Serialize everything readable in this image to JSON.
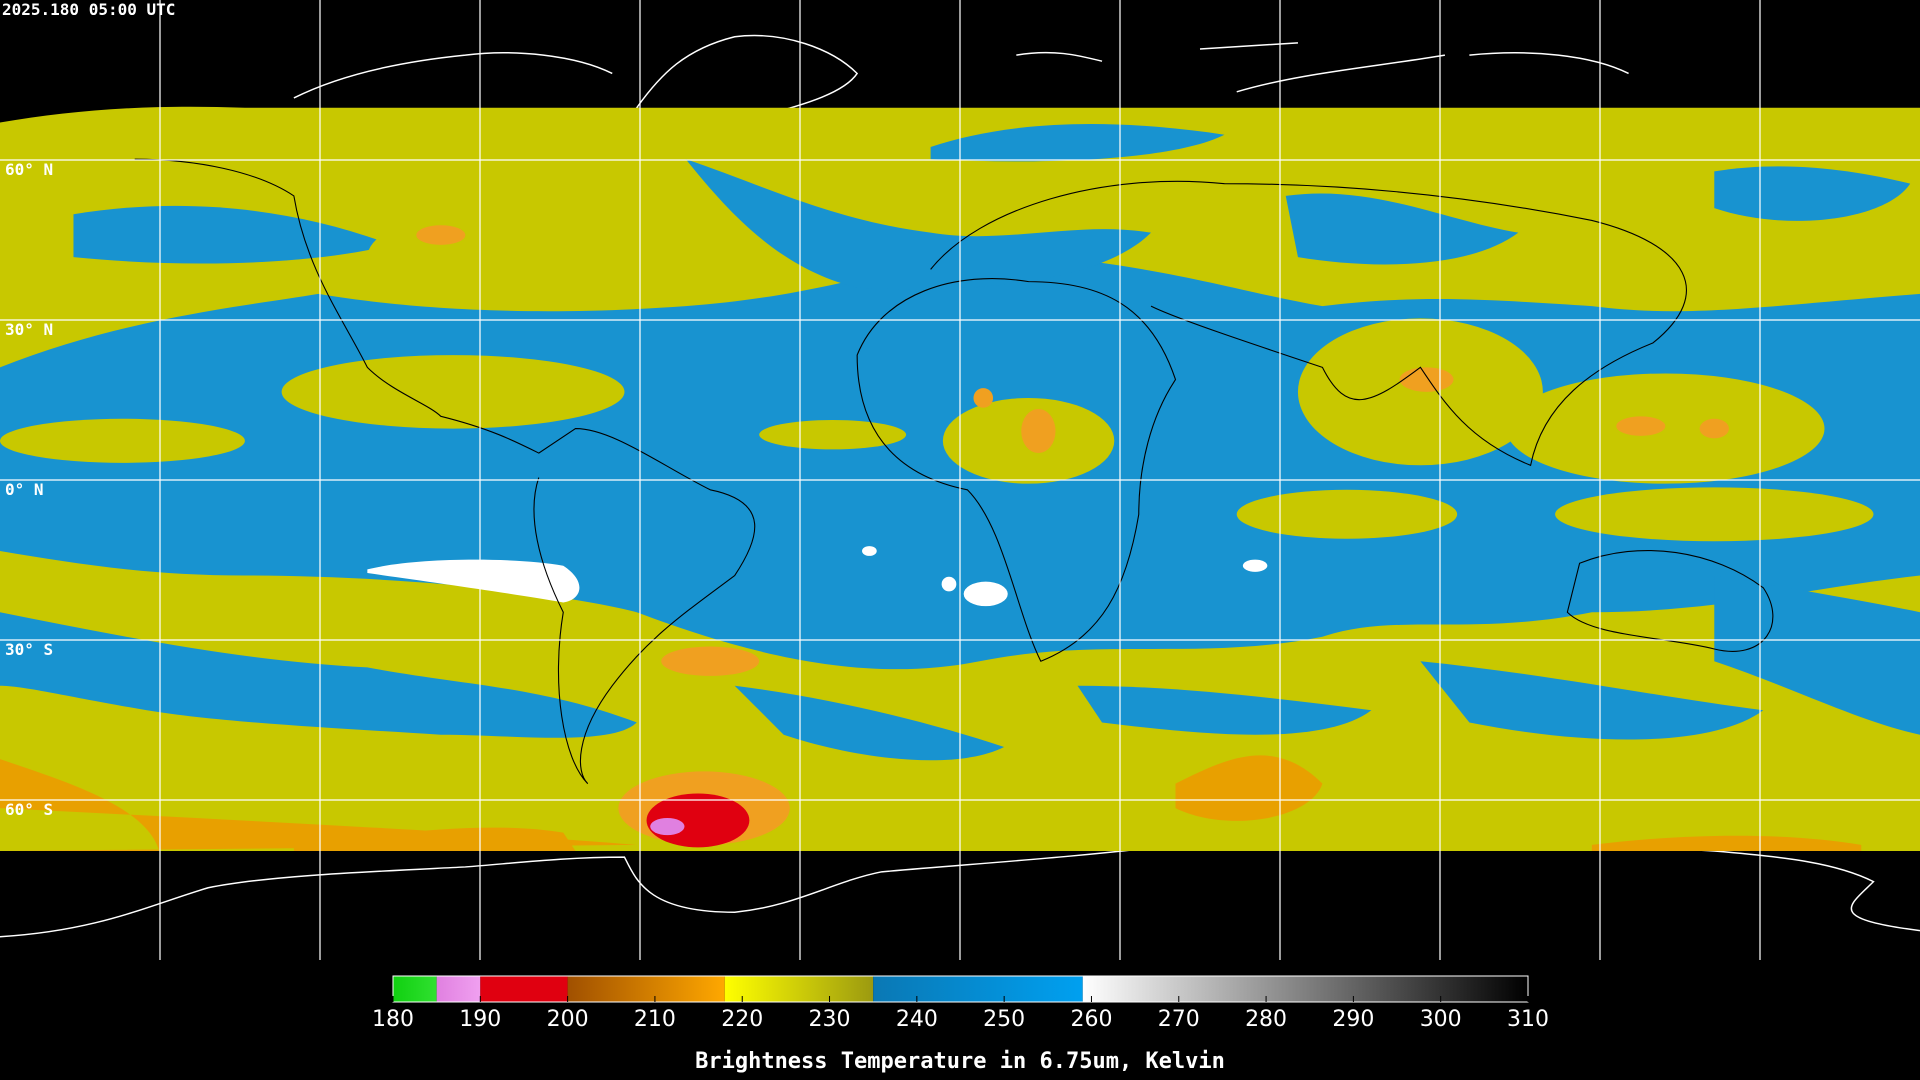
{
  "header": {
    "title": "2025.180 05:00 UTC"
  },
  "map": {
    "lat_labels": [
      "60° N",
      "30° N",
      "0° N",
      "30° S",
      "60° S"
    ]
  },
  "colorbar": {
    "min": 180,
    "max": 310,
    "ticks": [
      180,
      190,
      200,
      210,
      220,
      230,
      240,
      250,
      260,
      270,
      280,
      290,
      300,
      310
    ],
    "label": "Brightness Temperature in 6.75um, Kelvin",
    "stops": [
      {
        "from": 180,
        "to": 185,
        "color_start": "#10d010",
        "color_end": "#30e030"
      },
      {
        "from": 185,
        "to": 190,
        "color_start": "#e080e0",
        "color_end": "#f0a0f0"
      },
      {
        "from": 190,
        "to": 200,
        "color_start": "#e00010",
        "color_end": "#e00010"
      },
      {
        "from": 200,
        "to": 218,
        "color_start": "#a05000",
        "color_end": "#ffa800"
      },
      {
        "from": 218,
        "to": 235,
        "color_start": "#ffff00",
        "color_end": "#9c9a10"
      },
      {
        "from": 235,
        "to": 259,
        "color_start": "#0a78b4",
        "color_end": "#00a0f0"
      },
      {
        "from": 259,
        "to": 310,
        "color_start": "#ffffff",
        "color_end": "#000000"
      }
    ]
  }
}
